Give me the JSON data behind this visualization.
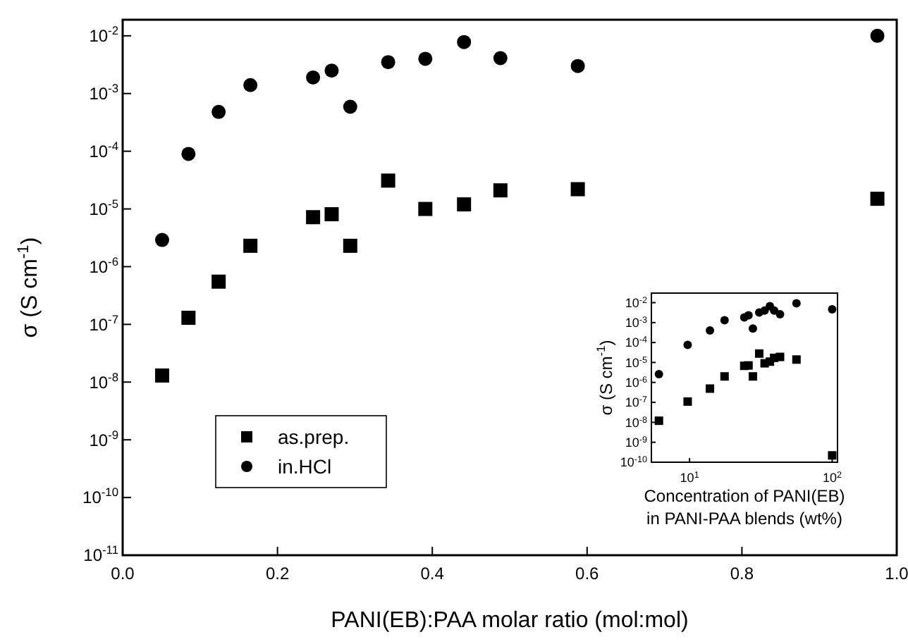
{
  "chart_data": [
    {
      "type": "scatter",
      "xlabel": "PANI(EB):PAA molar ratio (mol:mol)",
      "ylabel": "σ (S cm$^{-1}$)",
      "log": "y",
      "legend": "bottom left",
      "x": [
        0.051,
        0.085,
        0.124,
        0.165,
        0.246,
        0.27,
        0.294,
        0.343,
        0.391,
        0.441,
        0.488,
        0.588,
        0.975
      ],
      "xlim": [
        0,
        1
      ],
      "xticks": [
        {
          "value": 0,
          "label": "0.0"
        },
        0.2,
        0.4,
        0.6,
        0.8,
        {
          "value": 1,
          "label": "1.0"
        }
      ],
      "ylim": [
        1e-11,
        0.019
      ],
      "yticks": [
        {
          "value": 1e-11,
          "label": "10$^{-11}$"
        },
        {
          "value": 1e-10,
          "label": "10$^{-10}$"
        },
        {
          "value": 1e-09,
          "label": "10$^{-9}$"
        },
        {
          "value": 1e-08,
          "label": "10$^{-8}$"
        },
        {
          "value": 1e-07,
          "label": "10$^{-7}$"
        },
        {
          "value": 1e-06,
          "label": "10$^{-6}$"
        },
        {
          "value": 1e-05,
          "label": "10$^{-5}$"
        },
        {
          "value": 0.0001,
          "label": "10$^{-4}$"
        },
        {
          "value": 0.001,
          "label": "10$^{-3}$"
        },
        {
          "value": 0.01,
          "label": "10$^{-2}$"
        }
      ],
      "series": [
        {
          "name": "as.prep.",
          "color": "#000000",
          "marker": "square",
          "values": [
            1.3e-08,
            1.3e-07,
            5.5e-07,
            2.3e-06,
            7.2e-06,
            8.1e-06,
            2.3e-06,
            3.1e-05,
            1e-05,
            1.2e-05,
            2.1e-05,
            2.2e-05,
            1.5e-05
          ]
        },
        {
          "name": "in.HCl",
          "color": "#000000",
          "marker": "circle",
          "values": [
            2.9e-06,
            9e-05,
            0.00048,
            0.0014,
            0.0019,
            0.0025,
            0.00059,
            0.0035,
            0.004,
            0.0078,
            0.0041,
            0.003,
            0.01
          ]
        }
      ]
    },
    {
      "type": "scatter",
      "xlabel": "Concentration of PANI(EB)\nin PANI-PAA blends (wt%)",
      "ylabel": "σ (S cm$^{-1}$)",
      "log": "xy",
      "legend": false,
      "x": [
        6.1,
        9.7,
        13.9,
        17.6,
        24.2,
        25.9,
        27.8,
        30.8,
        33.6,
        36.6,
        39.2,
        43.1,
        56.2,
        100
      ],
      "xlim": [
        5.4,
        109
      ],
      "xticks": [
        {
          "value": 10,
          "label": "10$^{1}$"
        },
        {
          "value": 100,
          "label": "10$^{2}$"
        }
      ],
      "ylim": [
        1e-10,
        0.03
      ],
      "yticks": [
        {
          "value": 1e-10,
          "label": "10$^{-10}$"
        },
        {
          "value": 1e-09,
          "label": "10$^{-9}$"
        },
        {
          "value": 1e-08,
          "label": "10$^{-8}$"
        },
        {
          "value": 1e-07,
          "label": "10$^{-7}$"
        },
        {
          "value": 1e-06,
          "label": "10$^{-6}$"
        },
        {
          "value": 1e-05,
          "label": "10$^{-5}$"
        },
        {
          "value": 0.0001,
          "label": "10$^{-4}$"
        },
        {
          "value": 0.001,
          "label": "10$^{-3}$"
        },
        {
          "value": 0.01,
          "label": "10$^{-2}$"
        }
      ],
      "series": [
        {
          "color": "#000000",
          "marker": "square",
          "values": [
            1.2e-08,
            1.1e-07,
            4.9e-07,
            2e-06,
            6.8e-06,
            7.1e-06,
            2e-06,
            2.8e-05,
            9.1e-06,
            1.1e-05,
            1.7e-05,
            1.9e-05,
            1.4e-05,
            2.2e-10
          ]
        },
        {
          "color": "#000000",
          "marker": "circle",
          "values": [
            2.6e-06,
            7.6e-05,
            0.0004,
            0.0013,
            0.0018,
            0.0023,
            0.0005,
            0.0032,
            0.004,
            0.0066,
            0.004,
            0.0026,
            0.0093,
            0.0046
          ]
        }
      ]
    }
  ]
}
